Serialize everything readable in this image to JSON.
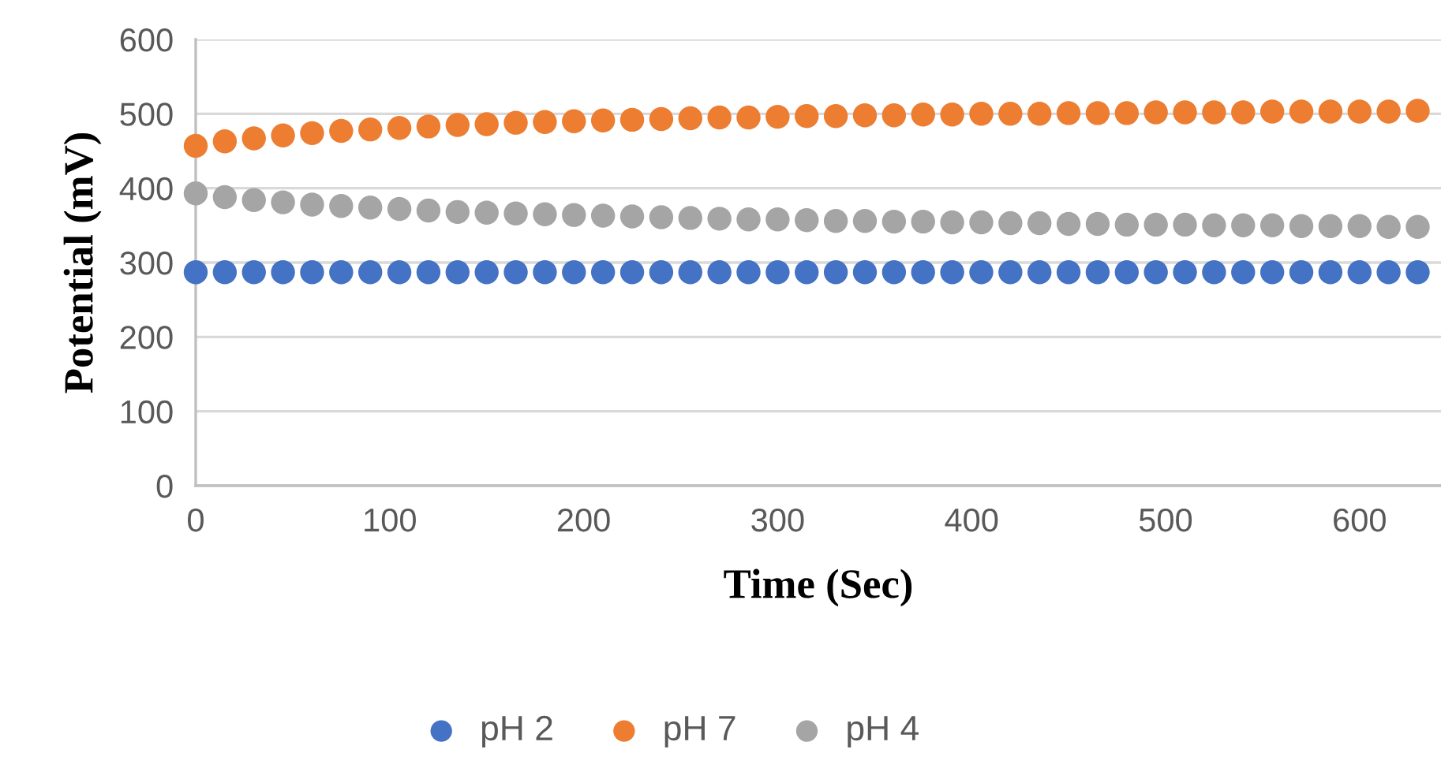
{
  "chart_data": {
    "type": "scatter",
    "xlabel": "Time (Sec)",
    "ylabel": "Potential (mV)",
    "x": [
      0,
      15,
      30,
      45,
      60,
      75,
      90,
      105,
      120,
      135,
      150,
      165,
      180,
      195,
      210,
      225,
      240,
      255,
      270,
      285,
      300,
      315,
      330,
      345,
      360,
      375,
      390,
      405,
      420,
      435,
      450,
      465,
      480,
      495,
      510,
      525,
      540,
      555,
      570,
      585,
      600,
      615,
      630
    ],
    "series": [
      {
        "name": "pH 2",
        "color": "#4472c4",
        "values": [
          287,
          287,
          287,
          287,
          287,
          287,
          287,
          287,
          287,
          287,
          287,
          287,
          287,
          287,
          287,
          287,
          287,
          287,
          287,
          287,
          287,
          287,
          287,
          287,
          287,
          287,
          287,
          287,
          287,
          287,
          287,
          287,
          287,
          287,
          287,
          287,
          287,
          287,
          287,
          287,
          287,
          287,
          287
        ]
      },
      {
        "name": "pH 7",
        "color": "#ed7d31",
        "values": [
          457,
          463,
          467,
          471,
          474,
          477,
          479,
          481,
          483,
          485,
          486,
          488,
          489,
          490,
          491,
          492,
          493,
          494,
          495,
          495,
          496,
          497,
          497,
          498,
          498,
          499,
          499,
          500,
          500,
          500,
          501,
          501,
          501,
          502,
          502,
          502,
          502,
          503,
          503,
          503,
          503,
          503,
          504
        ]
      },
      {
        "name": "pH 4",
        "color": "#a5a5a5",
        "values": [
          393,
          388,
          384,
          381,
          378,
          376,
          374,
          372,
          370,
          368,
          367,
          366,
          365,
          364,
          363,
          362,
          361,
          360,
          359,
          358,
          358,
          357,
          356,
          356,
          355,
          355,
          354,
          354,
          353,
          353,
          352,
          352,
          351,
          351,
          351,
          350,
          350,
          350,
          349,
          349,
          349,
          348,
          348
        ]
      }
    ],
    "xlim": [
      0,
      642
    ],
    "xticks": [
      0,
      100,
      200,
      300,
      400,
      500,
      600
    ],
    "ylim": [
      0,
      600
    ],
    "yticks": [
      0,
      100,
      200,
      300,
      400,
      500,
      600
    ],
    "grid": "y",
    "legend": "bottom",
    "marker": "circle"
  }
}
